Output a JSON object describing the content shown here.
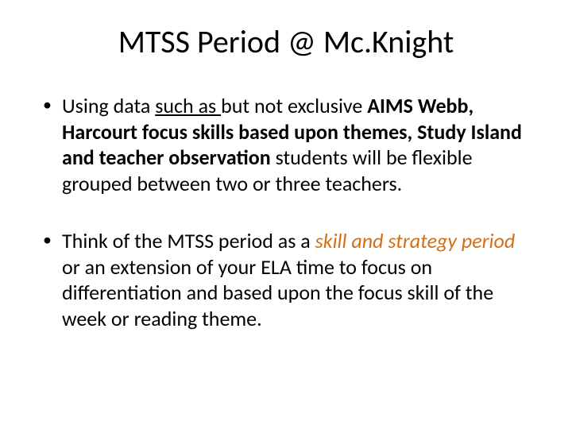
{
  "colors": {
    "background": "#ffffff",
    "text": "#000000",
    "accent": "#d36f16"
  },
  "typography": {
    "title_fontsize": 40,
    "body_fontsize": 26,
    "font_family": "Calibri"
  },
  "title": "MTSS Period @ Mc.Knight",
  "bullets": [
    {
      "prefix": "Using data ",
      "underlined": "such as ",
      "mid": "but not exclusive ",
      "bold_part": "AIMS Webb, Harcourt focus skills based upon themes, Study Island and teacher observation",
      "suffix": " students will be flexible grouped between two or three teachers."
    },
    {
      "prefix": "Think of the MTSS period as a ",
      "accent_italic": "skill and strategy period",
      "suffix": " or an extension of your ELA time to focus on differentiation and based upon the focus skill of the week or reading theme."
    }
  ]
}
